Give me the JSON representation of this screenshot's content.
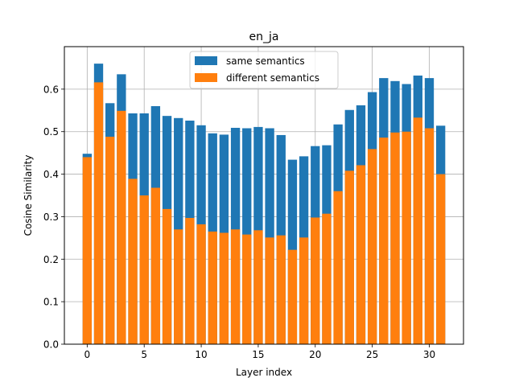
{
  "colors": {
    "same": "#1f77b4",
    "different": "#ff7f0e",
    "grid": "#b0b0b0",
    "axis": "#000000"
  },
  "chart_data": {
    "type": "bar",
    "title": "en_ja",
    "xlabel": "Layer index",
    "ylabel": "Cosine Similarity",
    "xlim": [
      -2,
      33
    ],
    "ylim": [
      0,
      0.7
    ],
    "xticks": [
      0,
      5,
      10,
      15,
      20,
      25,
      30
    ],
    "yticks": [
      0.0,
      0.1,
      0.2,
      0.3,
      0.4,
      0.5,
      0.6
    ],
    "ytick_labels": [
      "0.0",
      "0.1",
      "0.2",
      "0.3",
      "0.4",
      "0.5",
      "0.6"
    ],
    "grid": true,
    "legend_position": "top-center",
    "x": [
      0,
      1,
      2,
      3,
      4,
      5,
      6,
      7,
      8,
      9,
      10,
      11,
      12,
      13,
      14,
      15,
      16,
      17,
      18,
      19,
      20,
      21,
      22,
      23,
      24,
      25,
      26,
      27,
      28,
      29,
      30,
      31
    ],
    "series": [
      {
        "name": "same semantics",
        "color": "#1f77b4",
        "values": [
          0.448,
          0.66,
          0.567,
          0.635,
          0.543,
          0.543,
          0.56,
          0.537,
          0.532,
          0.526,
          0.515,
          0.496,
          0.493,
          0.509,
          0.508,
          0.511,
          0.508,
          0.492,
          0.434,
          0.442,
          0.466,
          0.468,
          0.517,
          0.551,
          0.562,
          0.593,
          0.626,
          0.619,
          0.612,
          0.632,
          0.626,
          0.514
        ]
      },
      {
        "name": "different semantics",
        "color": "#ff7f0e",
        "values": [
          0.44,
          0.616,
          0.488,
          0.549,
          0.389,
          0.35,
          0.368,
          0.318,
          0.27,
          0.297,
          0.282,
          0.265,
          0.262,
          0.27,
          0.258,
          0.268,
          0.251,
          0.256,
          0.222,
          0.251,
          0.298,
          0.307,
          0.36,
          0.408,
          0.421,
          0.459,
          0.486,
          0.498,
          0.5,
          0.533,
          0.508,
          0.4
        ]
      }
    ]
  }
}
